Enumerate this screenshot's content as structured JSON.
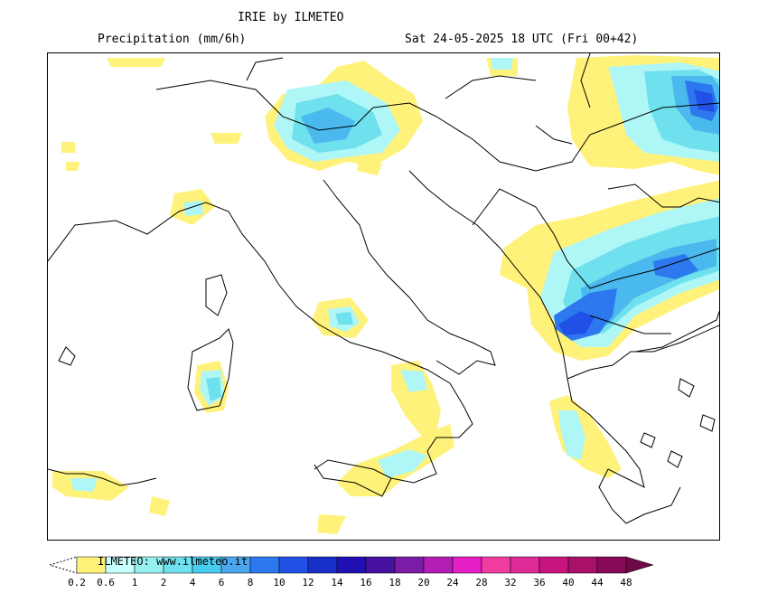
{
  "header": {
    "title": "IRIE by ILMETEO",
    "left_subtitle": "Precipitation (mm/6h)",
    "right_subtitle": "Sat 24-05-2025 18 UTC (Fri 00+42)"
  },
  "legend": {
    "credit": "ILMETEO: www.ilmeteo.it",
    "ticks": [
      "0.2",
      "0.6",
      "1",
      "2",
      "4",
      "6",
      "8",
      "10",
      "12",
      "14",
      "16",
      "18",
      "20",
      "24",
      "28",
      "32",
      "36",
      "40",
      "44",
      "48"
    ],
    "colors": [
      "#ffffff",
      "#fff27a",
      "#c8ffff",
      "#96f0f0",
      "#6fe0ee",
      "#49cdee",
      "#4aa6ee",
      "#2d78ee",
      "#2050e6",
      "#1830c8",
      "#2010b4",
      "#46119e",
      "#7c1ca6",
      "#b21eb4",
      "#e61ec6",
      "#f03ca0",
      "#dc2a96",
      "#c8147e",
      "#a8106a",
      "#880a56",
      "#6e0846"
    ]
  },
  "precip_colors": {
    "yellow": "#fff27a",
    "cyan_light": "#aff6f6",
    "cyan": "#6fe0ee",
    "blue_light": "#49b9ee",
    "blue": "#2d78ee",
    "blue_dark": "#2050e6"
  }
}
